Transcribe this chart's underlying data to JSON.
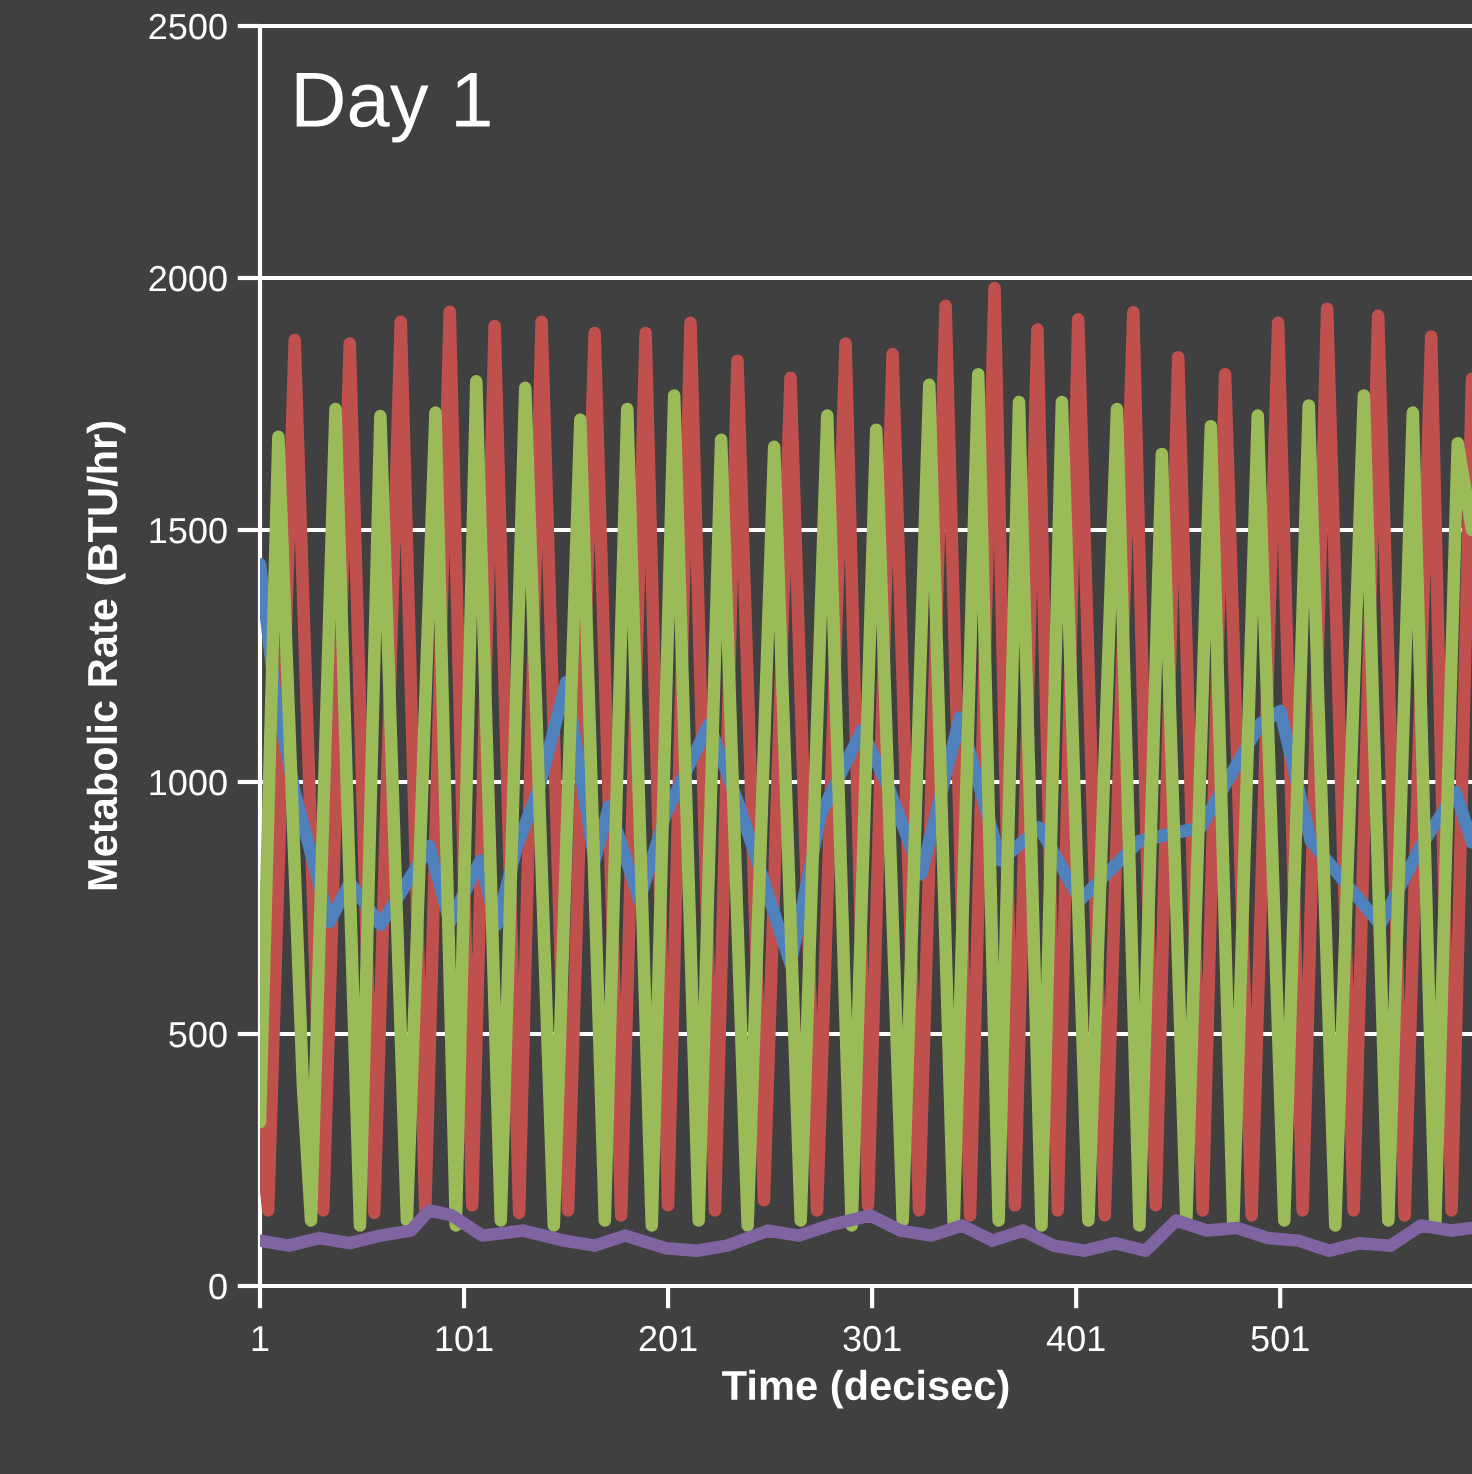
{
  "chart_data": {
    "type": "line",
    "title": "Day 1",
    "xlabel": "Time (decisec)",
    "ylabel": "Metabolic Rate (BTU/hr)",
    "xlim": [
      1,
      595
    ],
    "xticks": [
      1,
      101,
      201,
      301,
      401,
      501
    ],
    "ylim": [
      0,
      2500
    ],
    "yticks": [
      0,
      500,
      1000,
      1500,
      2000,
      2500
    ],
    "grid": "y",
    "marker": "none",
    "line_style": "solid",
    "series": [
      {
        "color": "#c0504d",
        "x": [
          1,
          5,
          18,
          32,
          45,
          57,
          70,
          82,
          94,
          105,
          116,
          128,
          139,
          152,
          165,
          178,
          190,
          201,
          212,
          224,
          235,
          248,
          261,
          274,
          288,
          299,
          311,
          324,
          337,
          349,
          361,
          371,
          382,
          392,
          402,
          415,
          429,
          440,
          451,
          463,
          474,
          487,
          500,
          512,
          524,
          537,
          549,
          562,
          575,
          585,
          595
        ],
        "values": [
          310,
          150,
          1877,
          150,
          1870,
          145,
          1913,
          150,
          1933,
          160,
          1905,
          145,
          1913,
          150,
          1891,
          140,
          1891,
          160,
          1911,
          150,
          1836,
          170,
          1802,
          150,
          1870,
          160,
          1849,
          150,
          1945,
          140,
          1980,
          160,
          1898,
          150,
          1918,
          140,
          1932,
          160,
          1843,
          150,
          1809,
          140,
          1911,
          150,
          1939,
          150,
          1925,
          140,
          1884,
          150,
          1800
        ]
      },
      {
        "color": "#4f81bd",
        "x": [
          1,
          8,
          18,
          35,
          45,
          60,
          70,
          84,
          94,
          109,
          117,
          127,
          138,
          151,
          165,
          172,
          187,
          200,
          221,
          236,
          250,
          261,
          276,
          296,
          310,
          325,
          344,
          364,
          383,
          403,
          432,
          462,
          472,
          491,
          501,
          516,
          550,
          570,
          587,
          595
        ],
        "values": [
          1432,
          1187,
          980,
          722,
          800,
          717,
          780,
          873,
          722,
          844,
          717,
          873,
          992,
          1198,
          844,
          951,
          766,
          938,
          1115,
          951,
          777,
          639,
          938,
          1103,
          980,
          817,
          1128,
          844,
          910,
          766,
          883,
          910,
          980,
          1115,
          1141,
          883,
          717,
          873,
          980,
          880
        ]
      },
      {
        "color": "#9bbb59",
        "x": [
          1,
          10,
          22,
          26,
          38,
          50,
          60,
          73,
          87,
          97,
          107,
          119,
          131,
          145,
          158,
          170,
          181,
          193,
          204,
          216,
          227,
          240,
          253,
          266,
          279,
          291,
          303,
          316,
          329,
          341,
          353,
          363,
          373,
          384,
          394,
          407,
          421,
          432,
          443,
          455,
          467,
          478,
          490,
          503,
          515,
          528,
          542,
          554,
          566,
          577,
          588,
          595
        ],
        "values": [
          325,
          1685,
          400,
          130,
          1740,
          120,
          1726,
          130,
          1733,
          120,
          1795,
          130,
          1782,
          120,
          1719,
          130,
          1740,
          120,
          1767,
          130,
          1679,
          120,
          1665,
          130,
          1727,
          120,
          1699,
          130,
          1788,
          120,
          1809,
          130,
          1754,
          120,
          1754,
          130,
          1740,
          120,
          1651,
          130,
          1706,
          120,
          1727,
          130,
          1747,
          120,
          1767,
          130,
          1733,
          120,
          1672,
          1500
        ]
      },
      {
        "color": "#8064a2",
        "x": [
          1,
          15,
          30,
          45,
          60,
          75,
          84,
          95,
          110,
          130,
          150,
          165,
          180,
          200,
          215,
          230,
          250,
          265,
          280,
          300,
          315,
          330,
          345,
          360,
          375,
          390,
          405,
          420,
          435,
          450,
          465,
          480,
          495,
          510,
          525,
          540,
          555,
          570,
          585,
          595
        ],
        "values": [
          90,
          80,
          95,
          85,
          100,
          110,
          150,
          140,
          100,
          110,
          90,
          80,
          100,
          75,
          70,
          80,
          110,
          100,
          120,
          140,
          110,
          100,
          120,
          90,
          110,
          80,
          70,
          85,
          70,
          130,
          110,
          115,
          95,
          90,
          70,
          85,
          80,
          120,
          110,
          115
        ]
      }
    ]
  }
}
